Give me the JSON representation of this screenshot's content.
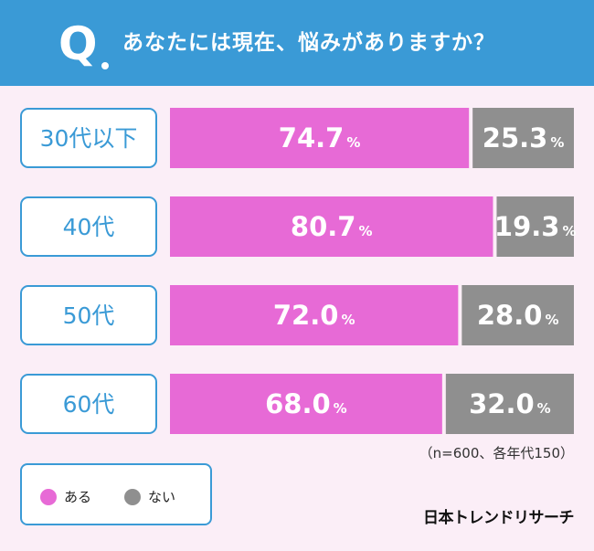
{
  "header": {
    "q_letter": "Q",
    "question": "あなたには現在、悩みがありますか？"
  },
  "chart_data": {
    "type": "bar",
    "orientation": "horizontal",
    "stacked": true,
    "categories": [
      "30代以下",
      "40代",
      "50代",
      "60代"
    ],
    "series": [
      {
        "name": "ある",
        "values": [
          74.7,
          80.7,
          72.0,
          68.0
        ],
        "color": "#e76ad6"
      },
      {
        "name": "ない",
        "values": [
          25.3,
          19.3,
          28.0,
          32.0
        ],
        "color": "#8f8f8f"
      }
    ],
    "value_suffix": "%",
    "xlim": [
      0,
      100
    ]
  },
  "legend": {
    "placement": "bottom-left",
    "items": [
      {
        "label": "ある",
        "color": "#e76ad6"
      },
      {
        "label": "ない",
        "color": "#8f8f8f"
      }
    ]
  },
  "sample_note": "（n=600、各年代150）",
  "brand": "日本トレンドリサーチ",
  "colors": {
    "header": "#3a9ad6",
    "background": "#fbeef7",
    "label_text": "#3a9ad6"
  }
}
